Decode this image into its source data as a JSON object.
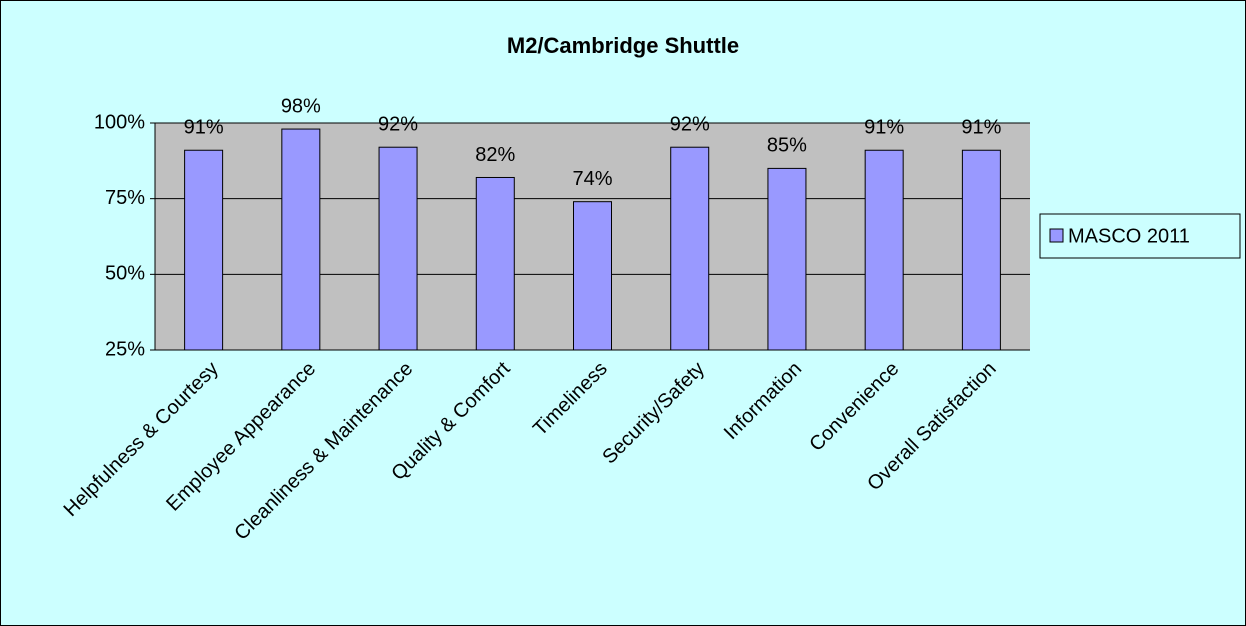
{
  "chart_data": {
    "type": "bar",
    "title": "M2/Cambridge Shuttle",
    "categories": [
      "Helpfulness & Courtesy",
      "Employee Appearance",
      "Cleanliness & Maintenance",
      "Quality & Comfort",
      "Timeliness",
      "Security/Safety",
      "Information",
      "Convenience",
      "Overall Satisfaction"
    ],
    "series": [
      {
        "name": "MASCO 2011",
        "color": "#9999ff",
        "values": [
          91,
          98,
          92,
          82,
          74,
          92,
          85,
          91,
          91
        ],
        "value_labels": [
          "91%",
          "98%",
          "92%",
          "82%",
          "74%",
          "92%",
          "85%",
          "91%",
          "91%"
        ]
      }
    ],
    "ylim": [
      25,
      100
    ],
    "yticks": [
      {
        "value": 25,
        "label": "25%"
      },
      {
        "value": 50,
        "label": "50%"
      },
      {
        "value": 75,
        "label": "75%"
      },
      {
        "value": 100,
        "label": "100%"
      }
    ],
    "grid": true,
    "legend": "right"
  }
}
